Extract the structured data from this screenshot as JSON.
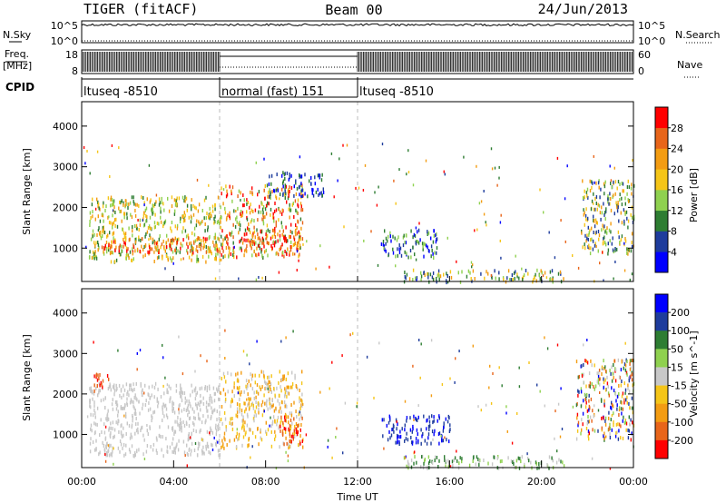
{
  "header": {
    "station": "TIGER (fitACF)",
    "beam": "Beam 00",
    "date": "24/Jun/2013"
  },
  "noise_panel": {
    "left_label": "N.Sky",
    "right_label": "N.Search",
    "left_ticks": [
      "10^5",
      "10^0"
    ],
    "right_ticks": [
      "10^5",
      "10^0"
    ]
  },
  "freq_panel": {
    "left_label_1": "Freq.",
    "left_label_2": "[MHz]",
    "right_label": "Nave",
    "left_ticks": [
      "18",
      "8"
    ],
    "right_ticks": [
      "60",
      "0"
    ]
  },
  "cpid": {
    "label": "CPID",
    "segments": [
      {
        "name": "ltuseq -8510",
        "start_hour": 0,
        "end_hour": 6
      },
      {
        "name": "normal (fast) 151",
        "start_hour": 6,
        "end_hour": 12
      },
      {
        "name": "ltuseq -8510",
        "start_hour": 12,
        "end_hour": 24
      }
    ]
  },
  "x_axis": {
    "label": "Time UT",
    "ticks": [
      "00:00",
      "04:00",
      "08:00",
      "12:00",
      "16:00",
      "20:00",
      "00:00"
    ],
    "range_hours": [
      0,
      24
    ]
  },
  "chart_data": [
    {
      "type": "heatmap",
      "ylabel": "Slant Range [km]",
      "yticks": [
        "1000",
        "2000",
        "3000",
        "4000"
      ],
      "ylim": [
        180,
        4600
      ],
      "colorbar": {
        "label": "Power [dB]",
        "ticks": [
          "4",
          "8",
          "12",
          "16",
          "20",
          "24",
          "28"
        ],
        "range": [
          0,
          32
        ],
        "colors": [
          "#0000ff",
          "#1e3c9c",
          "#2e7d32",
          "#8fd14f",
          "#f5c518",
          "#f39c12",
          "#e8651a",
          "#ff0000"
        ]
      },
      "regions": [
        {
          "t": [
            0.3,
            6.0
          ],
          "r": [
            700,
            2300
          ],
          "level": [
            2,
            5
          ]
        },
        {
          "t": [
            0.8,
            6.0
          ],
          "r": [
            900,
            1300
          ],
          "level": [
            5,
            7
          ]
        },
        {
          "t": [
            6.0,
            9.6
          ],
          "r": [
            800,
            2600
          ],
          "level": [
            2,
            7
          ]
        },
        {
          "t": [
            7.0,
            9.5
          ],
          "r": [
            900,
            1400
          ],
          "level": [
            5,
            7
          ]
        },
        {
          "t": [
            8.0,
            10.5
          ],
          "r": [
            2300,
            2900
          ],
          "level": [
            0,
            2
          ]
        },
        {
          "t": [
            13.0,
            15.5
          ],
          "r": [
            800,
            1500
          ],
          "level": [
            0,
            3
          ]
        },
        {
          "t": [
            14.0,
            21.0
          ],
          "r": [
            200,
            500
          ],
          "level": [
            1,
            5
          ]
        },
        {
          "t": [
            21.7,
            24.0
          ],
          "r": [
            900,
            2700
          ],
          "level": [
            1,
            5
          ]
        }
      ]
    },
    {
      "type": "heatmap",
      "ylabel": "Slant Range [km]",
      "yticks": [
        "1000",
        "2000",
        "3000",
        "4000"
      ],
      "ylim": [
        180,
        4600
      ],
      "colorbar": {
        "label": "Velocity [m s^-1]",
        "ticks": [
          "200",
          "100",
          "50",
          "15",
          "-15",
          "-50",
          "-100",
          "-200"
        ],
        "range": [
          -250,
          250
        ],
        "colors": [
          "#0000ff",
          "#1e3c9c",
          "#2e7d32",
          "#8fd14f",
          "#c8c8c8",
          "#f5c518",
          "#f39c12",
          "#e8651a",
          "#ff0000"
        ]
      },
      "regions": [
        {
          "t": [
            0.3,
            6.0
          ],
          "r": [
            500,
            2300
          ],
          "level": [
            4,
            4
          ]
        },
        {
          "t": [
            0.5,
            1.2
          ],
          "r": [
            2100,
            2600
          ],
          "level": [
            7,
            8
          ]
        },
        {
          "t": [
            6.0,
            9.6
          ],
          "r": [
            700,
            2600
          ],
          "level": [
            4,
            6
          ]
        },
        {
          "t": [
            8.6,
            9.6
          ],
          "r": [
            800,
            1500
          ],
          "level": [
            7,
            8
          ]
        },
        {
          "t": [
            13.0,
            16.0
          ],
          "r": [
            800,
            1500
          ],
          "level": [
            0,
            1
          ]
        },
        {
          "t": [
            14.0,
            21.0
          ],
          "r": [
            200,
            500
          ],
          "level": [
            2,
            4
          ]
        },
        {
          "t": [
            21.5,
            24.0
          ],
          "r": [
            900,
            2900
          ],
          "level": [
            0,
            8
          ]
        }
      ]
    }
  ]
}
